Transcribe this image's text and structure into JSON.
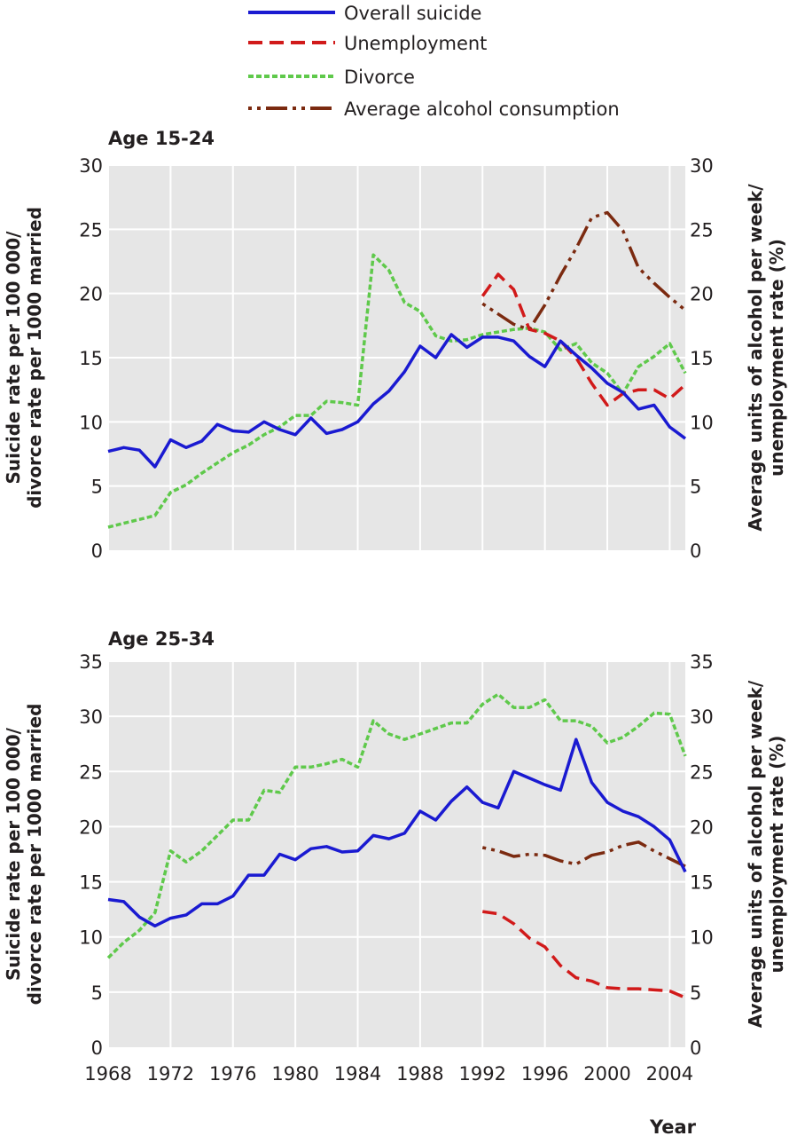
{
  "legend": [
    {
      "name": "Overall suicide",
      "key": "suicide"
    },
    {
      "name": "Unemployment",
      "key": "unemployment"
    },
    {
      "name": "Divorce",
      "key": "divorce"
    },
    {
      "name": "Average alcohol consumption",
      "key": "alcohol"
    }
  ],
  "styles": {
    "suicide": {
      "color": "#1a1ad1",
      "dash": ""
    },
    "unemployment": {
      "color": "#d11a1a",
      "dash": "16,8"
    },
    "divorce": {
      "color": "#5fc94b",
      "dash": "6,3"
    },
    "alcohol": {
      "color": "#7b2a10",
      "dash": "4,6,4,6,24,6"
    }
  },
  "plot_background": "#e6e6e6",
  "xlabel": "Year",
  "chart_data": [
    {
      "type": "line",
      "title": "Age 15-24",
      "ylabel_left": [
        "Suicide rate per 100 000/",
        "divorce rate per 1000 married"
      ],
      "ylabel_right": [
        "Average units of alcohol per week/",
        "unemployment rate (%)"
      ],
      "xlim": [
        1968,
        2005
      ],
      "ylim": [
        0,
        30
      ],
      "yticks": [
        0,
        5,
        10,
        15,
        20,
        25,
        30
      ],
      "xticks": [
        1968,
        1972,
        1976,
        1980,
        1984,
        1988,
        1992,
        1996,
        2000,
        2004
      ],
      "grid": true,
      "series": [
        {
          "name": "Overall suicide",
          "key": "suicide",
          "x": [
            1968,
            1969,
            1970,
            1971,
            1972,
            1973,
            1974,
            1975,
            1976,
            1977,
            1978,
            1979,
            1980,
            1981,
            1982,
            1983,
            1984,
            1985,
            1986,
            1987,
            1988,
            1989,
            1990,
            1991,
            1992,
            1993,
            1994,
            1995,
            1996,
            1997,
            1998,
            1999,
            2000,
            2001,
            2002,
            2003,
            2004,
            2005
          ],
          "y": [
            7.7,
            8.0,
            7.8,
            6.5,
            8.6,
            8.0,
            8.5,
            9.8,
            9.3,
            9.2,
            10.0,
            9.4,
            9.0,
            10.3,
            9.1,
            9.4,
            10.0,
            11.4,
            12.4,
            13.9,
            15.9,
            15.0,
            16.8,
            15.8,
            16.6,
            16.6,
            16.3,
            15.1,
            14.3,
            16.3,
            15.2,
            14.2,
            13.0,
            12.3,
            11.0,
            11.3,
            9.6,
            8.7
          ]
        },
        {
          "name": "Unemployment",
          "key": "unemployment",
          "x": [
            1992,
            1993,
            1994,
            1995,
            1996,
            1997,
            1998,
            1999,
            2000,
            2001,
            2002,
            2003,
            2004,
            2005
          ],
          "y": [
            19.8,
            21.5,
            20.3,
            17.2,
            16.9,
            16.3,
            15.0,
            13.0,
            11.3,
            12.2,
            12.5,
            12.5,
            11.8,
            12.9
          ]
        },
        {
          "name": "Divorce",
          "key": "divorce",
          "x": [
            1968,
            1969,
            1970,
            1971,
            1972,
            1973,
            1974,
            1975,
            1976,
            1977,
            1978,
            1979,
            1980,
            1981,
            1982,
            1983,
            1984,
            1985,
            1986,
            1987,
            1988,
            1989,
            1990,
            1991,
            1992,
            1993,
            1994,
            1995,
            1996,
            1997,
            1998,
            1999,
            2000,
            2001,
            2002,
            2003,
            2004,
            2005
          ],
          "y": [
            1.8,
            2.1,
            2.4,
            2.7,
            4.5,
            5.1,
            6.0,
            6.8,
            7.6,
            8.2,
            9.0,
            9.6,
            10.5,
            10.5,
            11.6,
            11.5,
            11.3,
            23.0,
            21.8,
            19.3,
            18.6,
            16.7,
            16.3,
            16.4,
            16.8,
            17.0,
            17.2,
            17.3,
            17.0,
            15.6,
            16.1,
            14.6,
            13.8,
            12.2,
            14.3,
            15.1,
            16.1,
            13.8
          ]
        },
        {
          "name": "Average alcohol consumption",
          "key": "alcohol",
          "x": [
            1992,
            1993,
            1994,
            1995,
            1996,
            1997,
            1998,
            1999,
            2000,
            2001,
            2002,
            2003,
            2004,
            2005
          ],
          "y": [
            19.2,
            18.4,
            17.6,
            17.2,
            19.1,
            21.4,
            23.5,
            25.9,
            26.3,
            24.9,
            22.0,
            20.8,
            19.7,
            18.7
          ]
        }
      ]
    },
    {
      "type": "line",
      "title": "Age 25-34",
      "ylabel_left": [
        "Suicide rate per 100 000/",
        "divorce rate per 1000 married"
      ],
      "ylabel_right": [
        "Average units of alcohol per week/",
        "unemployment rate (%)"
      ],
      "xlim": [
        1968,
        2005
      ],
      "ylim": [
        0,
        35
      ],
      "yticks": [
        0,
        5,
        10,
        15,
        20,
        25,
        30,
        35
      ],
      "xticks": [
        1968,
        1972,
        1976,
        1980,
        1984,
        1988,
        1992,
        1996,
        2000,
        2004
      ],
      "grid": true,
      "series": [
        {
          "name": "Overall suicide",
          "key": "suicide",
          "x": [
            1968,
            1969,
            1970,
            1971,
            1972,
            1973,
            1974,
            1975,
            1976,
            1977,
            1978,
            1979,
            1980,
            1981,
            1982,
            1983,
            1984,
            1985,
            1986,
            1987,
            1988,
            1989,
            1990,
            1991,
            1992,
            1993,
            1994,
            1995,
            1996,
            1997,
            1998,
            1999,
            2000,
            2001,
            2002,
            2003,
            2004,
            2005
          ],
          "y": [
            13.4,
            13.2,
            11.8,
            11.0,
            11.7,
            12.0,
            13.0,
            13.0,
            13.7,
            15.6,
            15.6,
            17.5,
            17.0,
            18.0,
            18.2,
            17.7,
            17.8,
            19.2,
            18.9,
            19.4,
            21.4,
            20.6,
            22.3,
            23.6,
            22.2,
            21.7,
            25.0,
            24.4,
            23.8,
            23.3,
            27.9,
            24.0,
            22.2,
            21.4,
            20.9,
            20.0,
            18.8,
            15.9
          ]
        },
        {
          "name": "Unemployment",
          "key": "unemployment",
          "x": [
            1992,
            1993,
            1994,
            1995,
            1996,
            1997,
            1998,
            1999,
            2000,
            2001,
            2002,
            2003,
            2004,
            2005
          ],
          "y": [
            12.3,
            12.1,
            11.2,
            9.9,
            9.1,
            7.4,
            6.3,
            6.0,
            5.4,
            5.3,
            5.3,
            5.2,
            5.1,
            4.5
          ]
        },
        {
          "name": "Divorce",
          "key": "divorce",
          "x": [
            1968,
            1969,
            1970,
            1971,
            1972,
            1973,
            1974,
            1975,
            1976,
            1977,
            1978,
            1979,
            1980,
            1981,
            1982,
            1983,
            1984,
            1985,
            1986,
            1987,
            1988,
            1989,
            1990,
            1991,
            1992,
            1993,
            1994,
            1995,
            1996,
            1997,
            1998,
            1999,
            2000,
            2001,
            2002,
            2003,
            2004,
            2005
          ],
          "y": [
            8.1,
            9.5,
            10.6,
            12.2,
            17.8,
            16.8,
            17.8,
            19.2,
            20.6,
            20.6,
            23.3,
            23.1,
            25.4,
            25.4,
            25.7,
            26.1,
            25.4,
            29.6,
            28.4,
            27.9,
            28.4,
            28.9,
            29.4,
            29.4,
            31.1,
            32.0,
            30.8,
            30.8,
            31.5,
            29.6,
            29.6,
            29.1,
            27.6,
            28.1,
            29.1,
            30.3,
            30.2,
            26.4
          ]
        },
        {
          "name": "Average alcohol consumption",
          "key": "alcohol",
          "x": [
            1992,
            1993,
            1994,
            1995,
            1996,
            1997,
            1998,
            1999,
            2000,
            2001,
            2002,
            2003,
            2004,
            2005
          ],
          "y": [
            18.1,
            17.8,
            17.3,
            17.5,
            17.4,
            16.9,
            16.6,
            17.4,
            17.7,
            18.3,
            18.6,
            17.8,
            17.1,
            16.4
          ]
        }
      ]
    }
  ]
}
